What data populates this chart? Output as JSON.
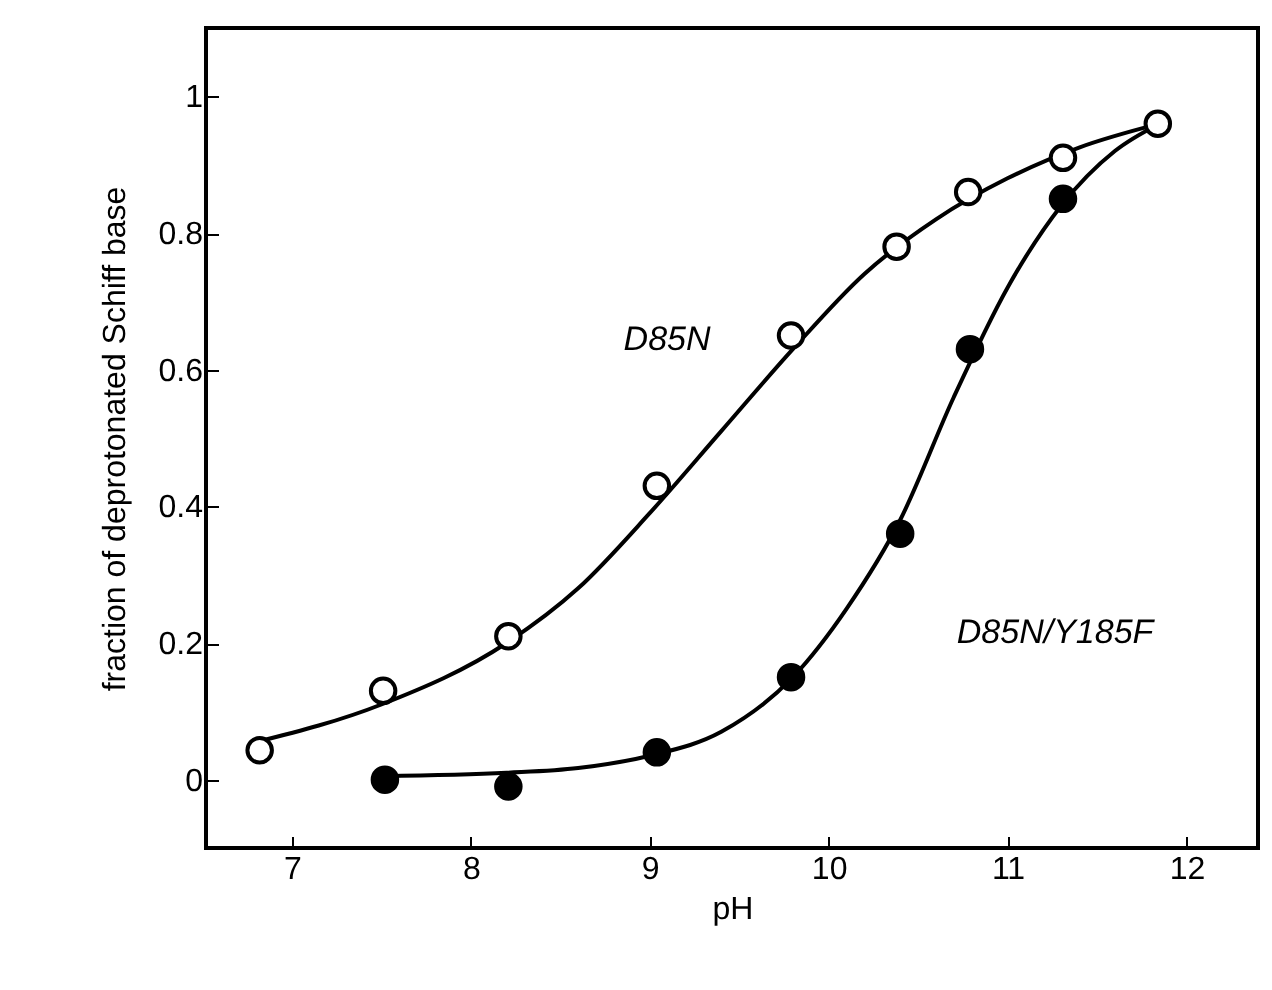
{
  "chart_data": {
    "type": "scatter",
    "xlabel": "pH",
    "ylabel": "fraction of deprotonated Schiff base",
    "xlim": [
      6.52,
      12.4
    ],
    "ylim": [
      -0.1,
      1.1
    ],
    "xticks": [
      7,
      8,
      9,
      10,
      11,
      12
    ],
    "yticks": [
      0,
      0.2,
      0.4,
      0.6,
      0.8,
      1
    ],
    "marker": "circle",
    "series": [
      {
        "type": "line",
        "marker": "none",
        "color": "#000000",
        "x": [
          6.8,
          7.5,
          8.2,
          8.6,
          9.0,
          9.4,
          9.8,
          10.2,
          10.6,
          11.0,
          11.4,
          11.85
        ],
        "values": [
          0.055,
          0.11,
          0.2,
          0.28,
          0.39,
          0.51,
          0.63,
          0.74,
          0.82,
          0.88,
          0.925,
          0.96
        ]
      },
      {
        "type": "line",
        "marker": "none",
        "color": "#000000",
        "x": [
          7.5,
          8.2,
          8.6,
          9.0,
          9.4,
          9.8,
          10.1,
          10.4,
          10.7,
          11.0,
          11.3,
          11.6,
          11.85
        ],
        "values": [
          0.005,
          0.01,
          0.017,
          0.035,
          0.07,
          0.15,
          0.25,
          0.38,
          0.56,
          0.72,
          0.84,
          0.92,
          0.96
        ]
      },
      {
        "name": "D85N",
        "color": "#ffffff",
        "x": [
          6.82,
          7.51,
          8.21,
          9.04,
          9.79,
          10.38,
          10.78,
          11.31,
          11.84
        ],
        "values": [
          0.043,
          0.13,
          0.21,
          0.43,
          0.65,
          0.78,
          0.86,
          0.91,
          0.96
        ]
      },
      {
        "name": "D85N/Y185F",
        "color": "#000000",
        "x": [
          7.52,
          8.21,
          9.04,
          9.79,
          10.4,
          10.79,
          11.31
        ],
        "values": [
          0.0,
          -0.01,
          0.04,
          0.15,
          0.36,
          0.63,
          0.85
        ]
      }
    ]
  }
}
